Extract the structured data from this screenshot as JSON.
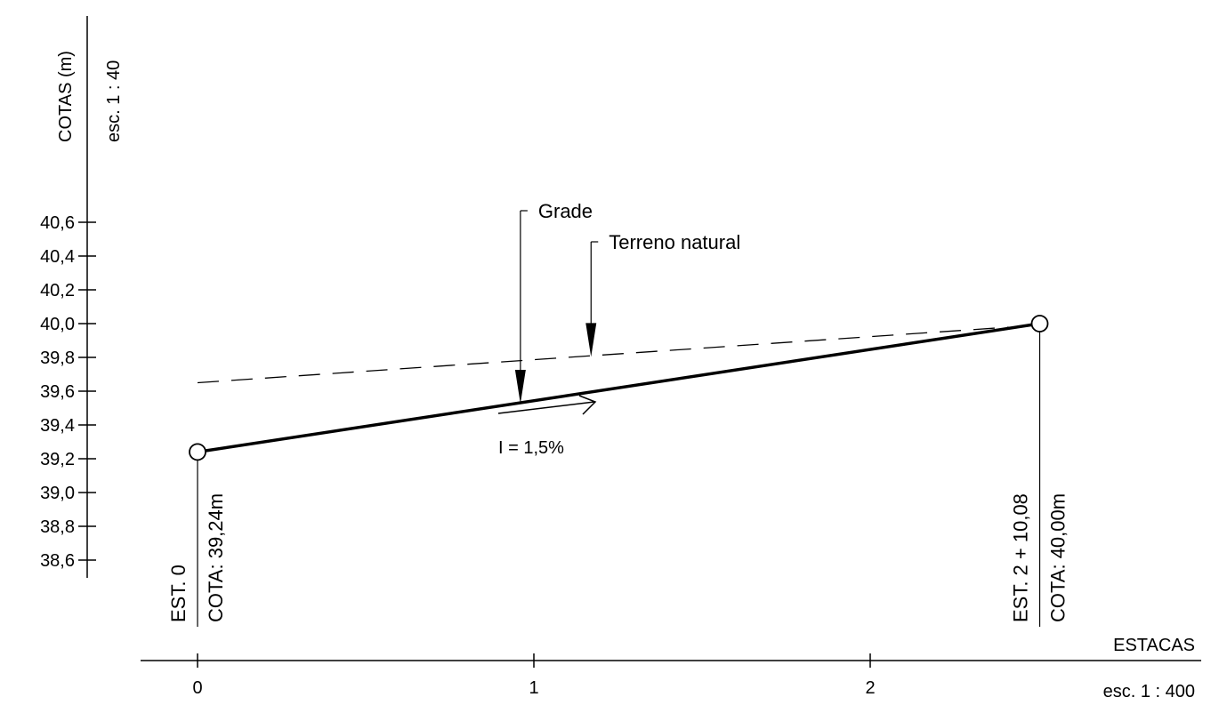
{
  "chart_data": {
    "type": "line",
    "y_axis": {
      "label": "COTAS (m)",
      "scale": "esc. 1 : 40",
      "ticks": [
        "40,6",
        "40,4",
        "40,2",
        "40,0",
        "39,8",
        "39,6",
        "39,4",
        "39,2",
        "39,0",
        "38,8",
        "38,6"
      ],
      "range": [
        38.6,
        40.6
      ]
    },
    "x_axis": {
      "label": "ESTACAS",
      "scale": "esc. 1 : 400",
      "ticks": [
        "0",
        "1",
        "2"
      ],
      "range": [
        0,
        2.504
      ]
    },
    "series": [
      {
        "name": "Grade",
        "style": "solid",
        "points": [
          [
            0,
            39.24
          ],
          [
            2.504,
            40.0
          ]
        ]
      },
      {
        "name": "Terreno natural",
        "style": "dashed",
        "points": [
          [
            0,
            39.65
          ],
          [
            2.504,
            40.0
          ]
        ]
      }
    ],
    "slope_label": "I = 1,5%",
    "stations": [
      {
        "x": 0,
        "y": 39.24,
        "est": "EST. 0",
        "cota": "COTA: 39,24m"
      },
      {
        "x": 2.504,
        "y": 40.0,
        "est": "EST. 2 + 10,08",
        "cota": "COTA: 40,00m"
      }
    ],
    "callouts": [
      {
        "text": "Grade",
        "target_x": 0.96
      },
      {
        "text": "Terreno natural",
        "target_x": 1.17
      }
    ]
  },
  "colors": {
    "ink": "#000000",
    "background": "#ffffff"
  }
}
